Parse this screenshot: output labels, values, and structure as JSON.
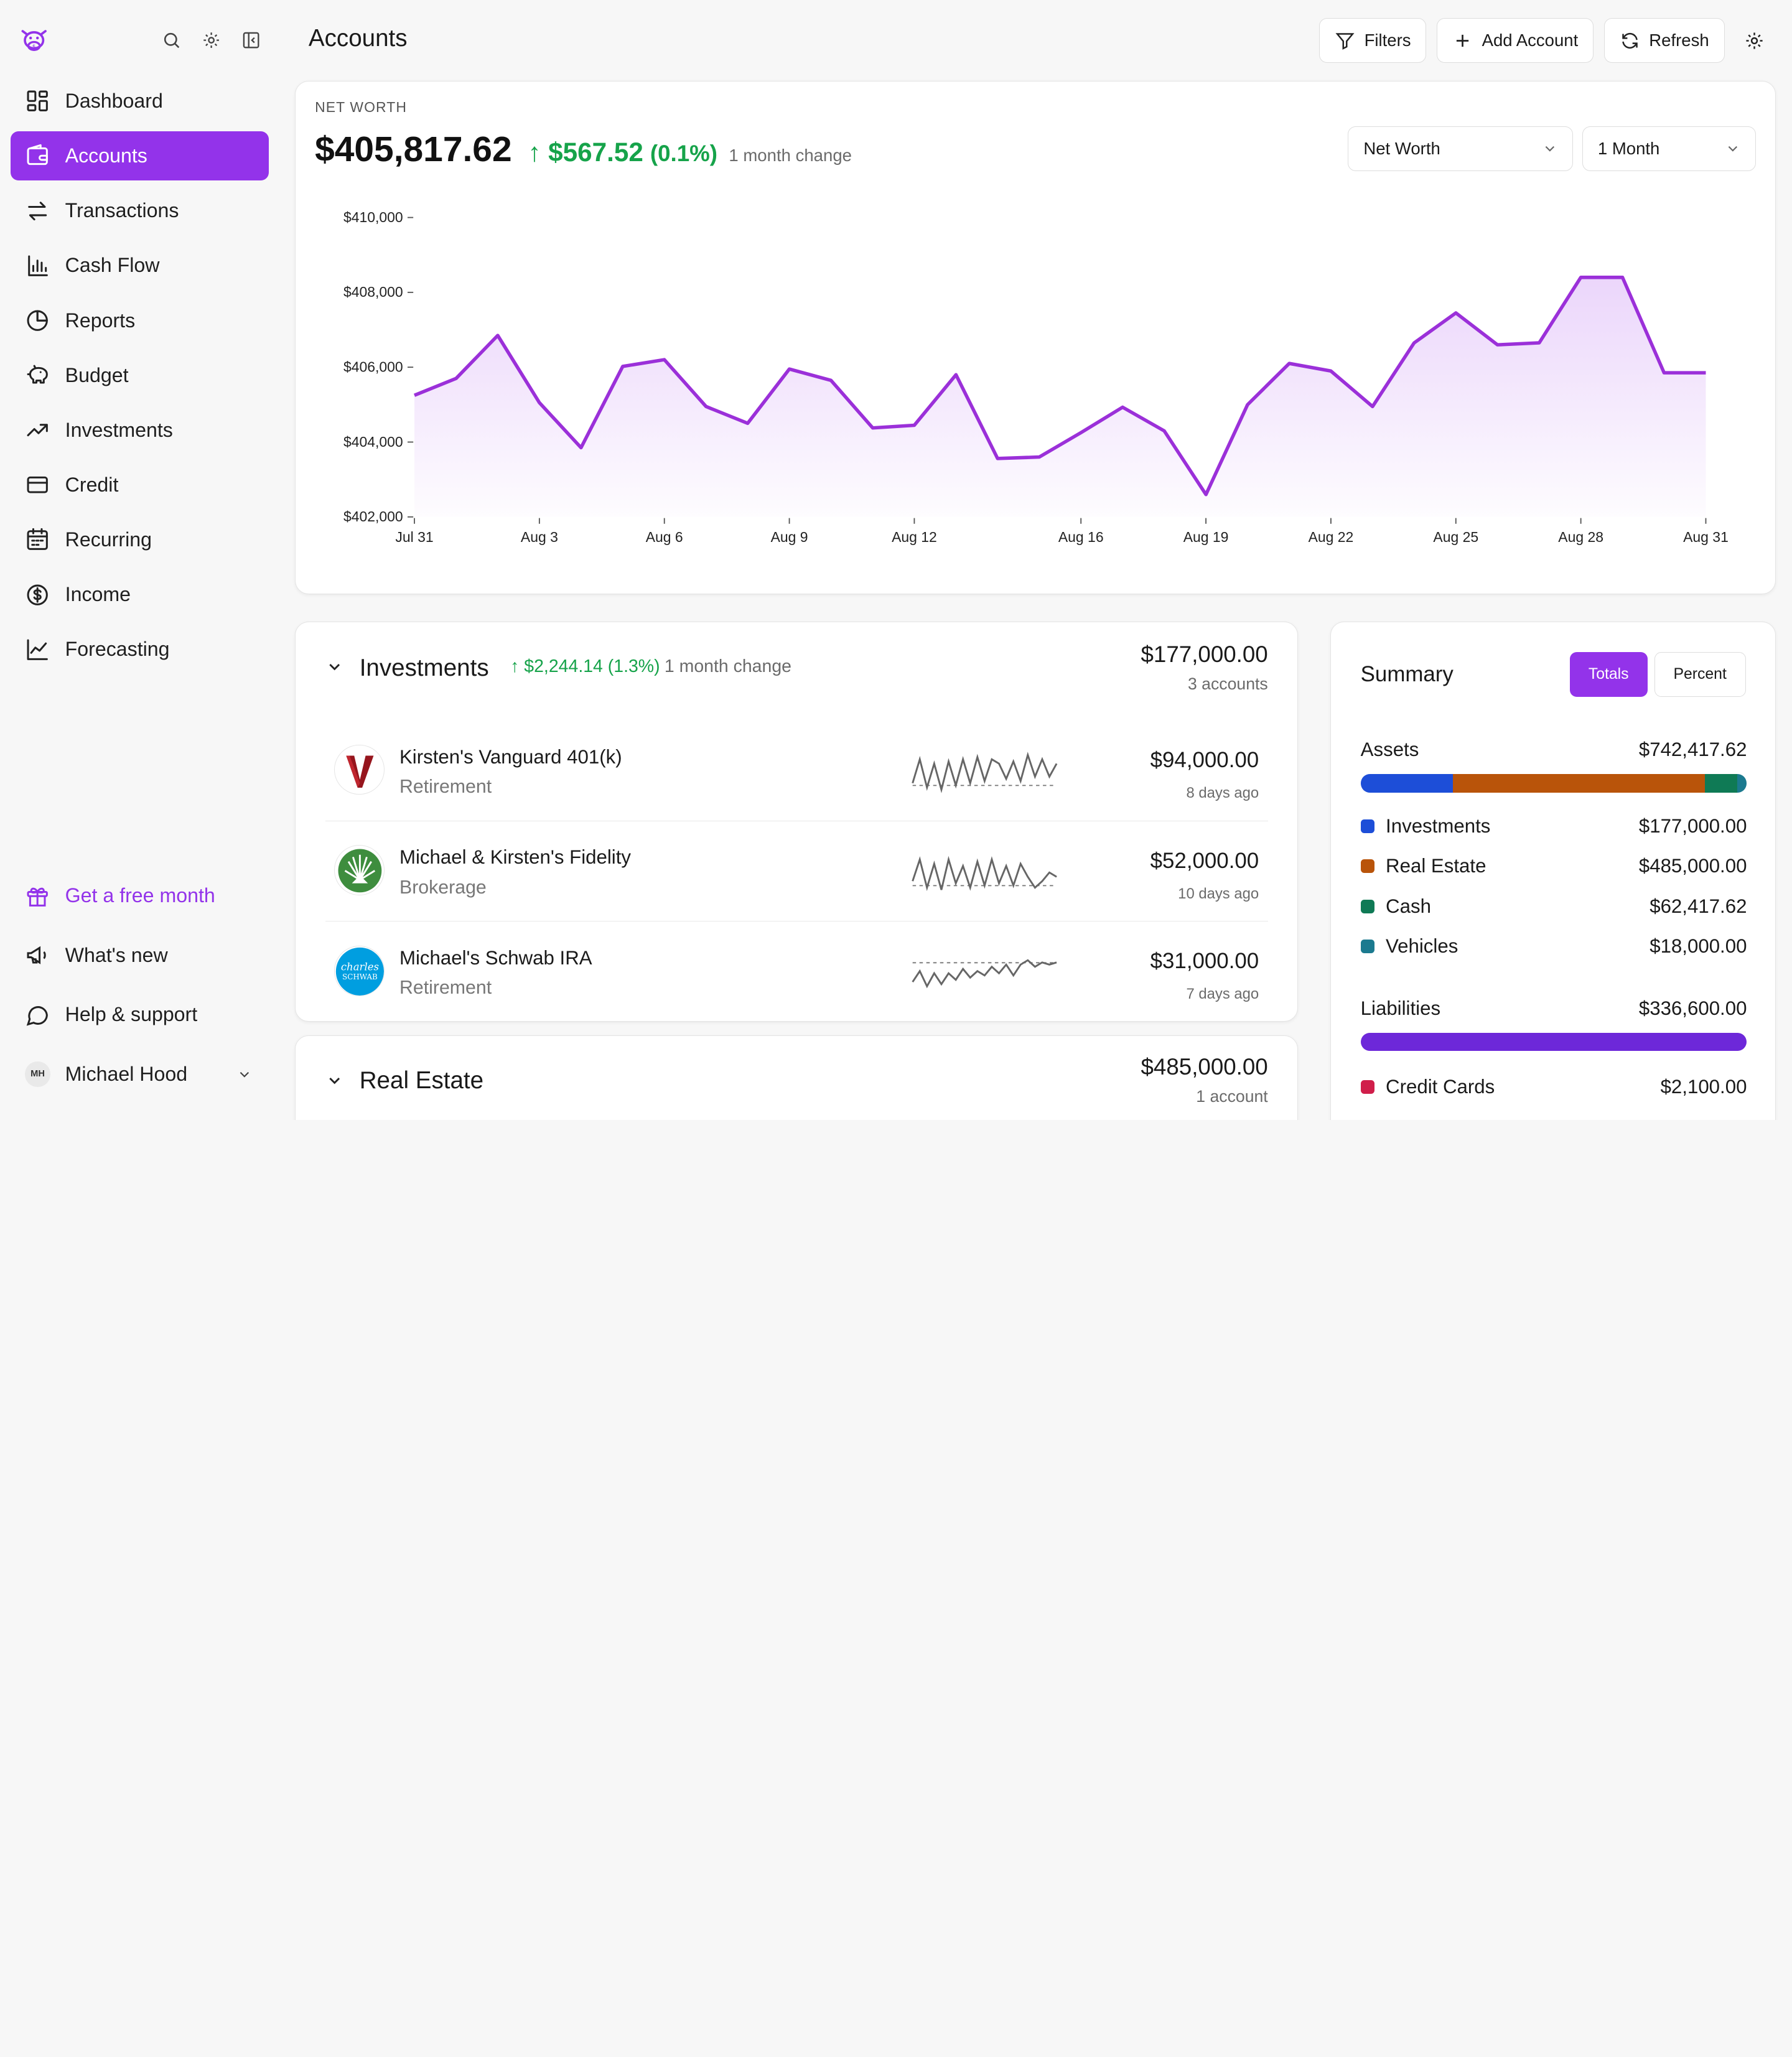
{
  "sidebar": {
    "nav": [
      {
        "label": "Dashboard",
        "icon": "dashboard-icon",
        "active": false
      },
      {
        "label": "Accounts",
        "icon": "wallet-icon",
        "active": true
      },
      {
        "label": "Transactions",
        "icon": "arrows-swap-icon",
        "active": false
      },
      {
        "label": "Cash Flow",
        "icon": "bar-chart-icon",
        "active": false
      },
      {
        "label": "Reports",
        "icon": "pie-chart-icon",
        "active": false
      },
      {
        "label": "Budget",
        "icon": "piggy-bank-icon",
        "active": false
      },
      {
        "label": "Investments",
        "icon": "trending-up-icon",
        "active": false
      },
      {
        "label": "Credit",
        "icon": "credit-card-icon",
        "active": false
      },
      {
        "label": "Recurring",
        "icon": "calendar-icon",
        "active": false
      },
      {
        "label": "Income",
        "icon": "dollar-circle-icon",
        "active": false
      },
      {
        "label": "Forecasting",
        "icon": "line-chart-icon",
        "active": false
      }
    ],
    "promo_label": "Get a free month",
    "whats_new_label": "What's new",
    "help_label": "Help & support",
    "user": {
      "initials": "MH",
      "name": "Michael Hood"
    }
  },
  "header": {
    "title": "Accounts",
    "filters_label": "Filters",
    "add_account_label": "Add Account",
    "refresh_label": "Refresh"
  },
  "networth": {
    "label": "NET WORTH",
    "amount": "$405,817.62",
    "change": "↑ $567.52",
    "change_pct": "(0.1%)",
    "caption": "1 month change",
    "metric_select": "Net Worth",
    "range_select": "1 Month"
  },
  "chart_data": {
    "type": "area",
    "title": "",
    "xlabel": "",
    "ylabel": "",
    "ylim": [
      402000,
      410000
    ],
    "y_ticks": [
      "$410,000",
      "$408,000",
      "$406,000",
      "$404,000",
      "$402,000"
    ],
    "x_ticks": [
      "Jul 31",
      "Aug 3",
      "Aug 6",
      "Aug 9",
      "Aug 12",
      "Aug 16",
      "Aug 19",
      "Aug 22",
      "Aug 25",
      "Aug 28",
      "Aug 31"
    ],
    "x": [
      "Jul 31",
      "Aug 1",
      "Aug 2",
      "Aug 3",
      "Aug 4",
      "Aug 5",
      "Aug 6",
      "Aug 7",
      "Aug 8",
      "Aug 9",
      "Aug 10",
      "Aug 11",
      "Aug 12",
      "Aug 13",
      "Aug 14",
      "Aug 15",
      "Aug 16",
      "Aug 17",
      "Aug 18",
      "Aug 19",
      "Aug 20",
      "Aug 21",
      "Aug 22",
      "Aug 23",
      "Aug 24",
      "Aug 25",
      "Aug 26",
      "Aug 27",
      "Aug 28",
      "Aug 29",
      "Aug 30",
      "Aug 31"
    ],
    "values": [
      405250,
      405700,
      406850,
      405050,
      403850,
      406020,
      406200,
      404950,
      404500,
      405950,
      405650,
      404380,
      404450,
      405800,
      403560,
      403600,
      404250,
      404930,
      404300,
      402600,
      405000,
      406100,
      405900,
      404950,
      406650,
      407450,
      406600,
      406650,
      408400,
      408400,
      405850,
      405850
    ],
    "line_color": "#9b30d9",
    "grid": false
  },
  "investments": {
    "title": "Investments",
    "change": "↑ $2,244.14 (1.3%)",
    "change_caption": "1 month change",
    "total": "$177,000.00",
    "count": "3 accounts",
    "accounts": [
      {
        "name": "Kirsten's Vanguard 401(k)",
        "type": "Retirement",
        "balance": "$94,000.00",
        "updated": "8 days ago",
        "logo": "vanguard-logo-icon"
      },
      {
        "name": "Michael & Kirsten's Fidelity",
        "type": "Brokerage",
        "balance": "$52,000.00",
        "updated": "10 days ago",
        "logo": "fidelity-logo-icon"
      },
      {
        "name": "Michael's Schwab IRA",
        "type": "Retirement",
        "balance": "$31,000.00",
        "updated": "7 days ago",
        "logo": "schwab-logo-icon",
        "logo_text": [
          "charles",
          "SCHWAB"
        ]
      }
    ]
  },
  "realestate": {
    "title": "Real Estate",
    "total": "$485,000.00",
    "count": "1 account"
  },
  "summary": {
    "title": "Summary",
    "totals_label": "Totals",
    "percent_label": "Percent",
    "assets": {
      "label": "Assets",
      "total": "$742,417.62",
      "items": [
        {
          "label": "Investments",
          "value": "$177,000.00",
          "amount": 177000,
          "color": "#1d4ed8"
        },
        {
          "label": "Real Estate",
          "value": "$485,000.00",
          "amount": 485000,
          "color": "#b9540a"
        },
        {
          "label": "Cash",
          "value": "$62,417.62",
          "amount": 62417.62,
          "color": "#0f7a55"
        },
        {
          "label": "Vehicles",
          "value": "$18,000.00",
          "amount": 18000,
          "color": "#1b7a8f"
        }
      ]
    },
    "liabilities": {
      "label": "Liabilities",
      "total": "$336,600.00",
      "bar_color": "#6d28d9",
      "items": [
        {
          "label": "Credit Cards",
          "value": "$2,100.00",
          "color": "#d01e4a"
        }
      ]
    }
  }
}
